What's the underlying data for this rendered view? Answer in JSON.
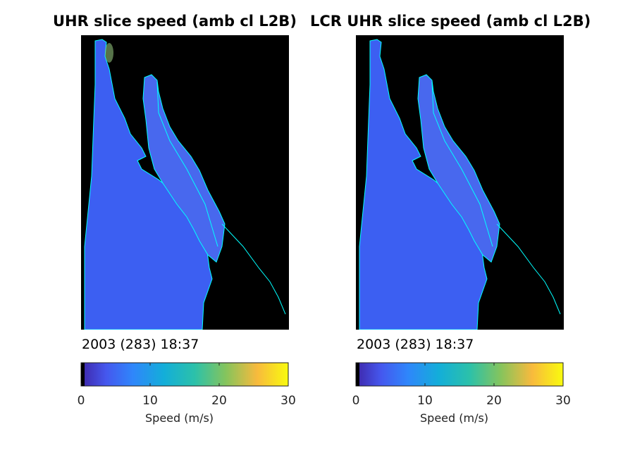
{
  "chart_data": [
    {
      "type": "heatmap",
      "title": "UHR slice speed (amb cl L2B)",
      "timestamp": "2003 (283) 18:37",
      "colorbar": {
        "label": "Speed (m/s)",
        "range": [
          0,
          30
        ],
        "ticks": [
          0,
          10,
          20,
          30
        ],
        "colormap": "parula"
      },
      "dominant_speed": 6,
      "colors": {
        "background": "#000000",
        "coastline": "#00ffff",
        "field": "#3c5ff2"
      }
    },
    {
      "type": "heatmap",
      "title": "LCR UHR slice speed (amb cl L2B)",
      "timestamp": "2003 (283) 18:37",
      "colorbar": {
        "label": "Speed (m/s)",
        "range": [
          0,
          30
        ],
        "ticks": [
          0,
          10,
          20,
          30
        ],
        "colormap": "parula"
      },
      "dominant_speed": 6,
      "colors": {
        "background": "#000000",
        "coastline": "#00ffff",
        "field": "#3c5ff2"
      }
    }
  ]
}
